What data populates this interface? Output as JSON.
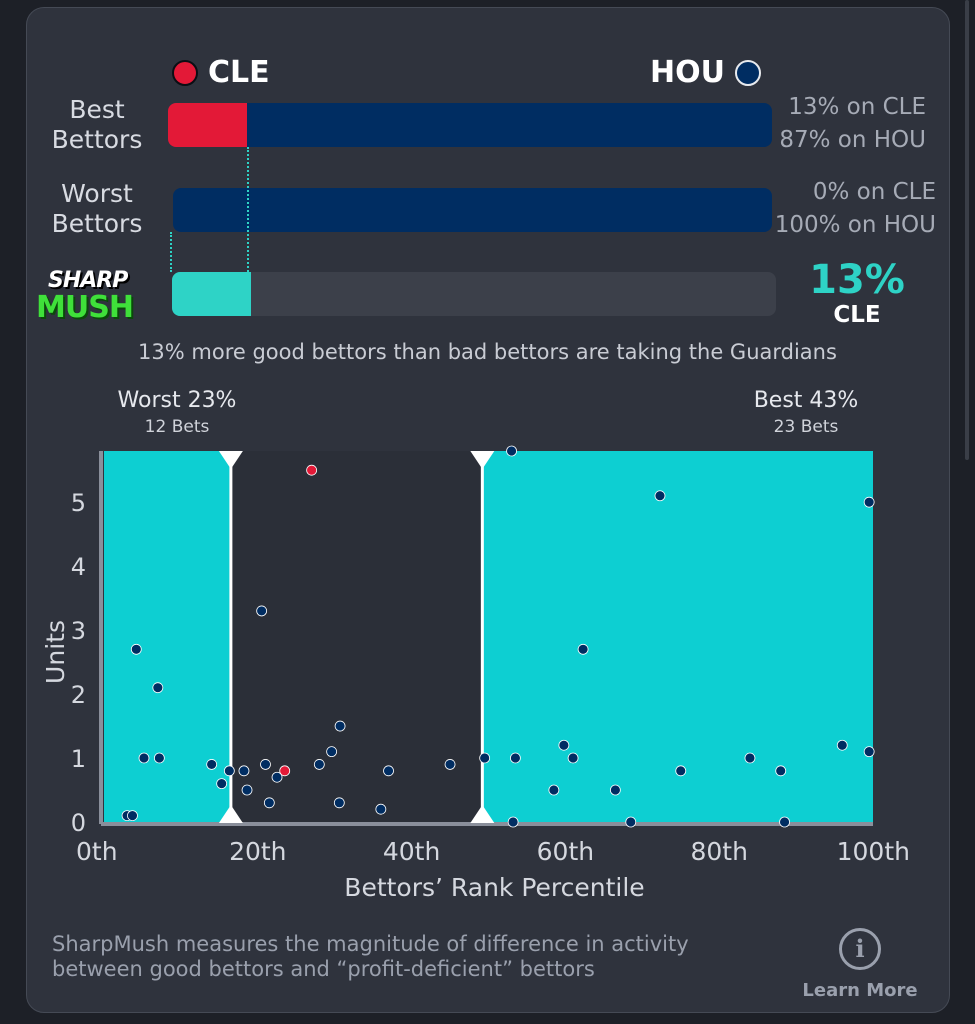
{
  "teams": {
    "left": {
      "abbr": "CLE",
      "color": "#e31937"
    },
    "right": {
      "abbr": "HOU",
      "color": "#002d62"
    }
  },
  "rows": [
    {
      "label_line1": "Best",
      "label_line2": "Bettors",
      "cle_pct": 13,
      "cle_text": "13% on CLE",
      "hou_text": "87% on HOU"
    },
    {
      "label_line1": "Worst",
      "label_line2": "Bettors",
      "cle_pct": 0,
      "cle_text": "0% on CLE",
      "hou_text": "100% on HOU"
    }
  ],
  "sharpmush": {
    "logo_line1": "SHARP",
    "logo_line2": "MUSH",
    "value": 13,
    "value_text": "13%",
    "team": "CLE",
    "summary": "13% more good bettors than bad bettors are taking the Guardians",
    "accent": "#2ed3c6"
  },
  "buckets": {
    "worst": {
      "title": "Worst 23%",
      "bets": "12 Bets",
      "upper_percentile": 16.5
    },
    "best": {
      "title": "Best 43%",
      "bets": "23 Bets",
      "lower_percentile": 49.2
    }
  },
  "chart_data": {
    "type": "scatter",
    "xlabel": "Bettors’ Rank Percentile",
    "ylabel": "Units",
    "xlim": [
      0,
      100
    ],
    "ylim": [
      0,
      5.8
    ],
    "x_ticks": [
      "0th",
      "20th",
      "40th",
      "60th",
      "80th",
      "100th"
    ],
    "x_tick_values": [
      0,
      20,
      40,
      60,
      80,
      100
    ],
    "y_ticks": [
      "0",
      "1",
      "2",
      "3",
      "4",
      "5"
    ],
    "y_tick_values": [
      0,
      1,
      2,
      3,
      4,
      5
    ],
    "shaded_regions_color": "#0dcfd2",
    "series": [
      {
        "team": "CLE",
        "color": "#e31937",
        "points": [
          [
            27,
            5.5
          ],
          [
            23.5,
            0.8
          ]
        ]
      },
      {
        "team": "HOU",
        "color": "#002d62",
        "points": [
          [
            3,
            0.1
          ],
          [
            3.7,
            0.1
          ],
          [
            4.2,
            2.7
          ],
          [
            5.2,
            1
          ],
          [
            7,
            2.1
          ],
          [
            7.2,
            1
          ],
          [
            14,
            0.9
          ],
          [
            15.3,
            0.6
          ],
          [
            16.3,
            0.8
          ],
          [
            18.2,
            0.8
          ],
          [
            18.6,
            0.5
          ],
          [
            20.5,
            3.3
          ],
          [
            21,
            0.9
          ],
          [
            21.5,
            0.3
          ],
          [
            22.5,
            0.7
          ],
          [
            28,
            0.9
          ],
          [
            29.6,
            1.1
          ],
          [
            30.6,
            0.3
          ],
          [
            30.7,
            1.5
          ],
          [
            36,
            0.2
          ],
          [
            37,
            0.8
          ],
          [
            45,
            0.9
          ],
          [
            49.5,
            1
          ],
          [
            53,
            5.8
          ],
          [
            53.2,
            0
          ],
          [
            53.5,
            1
          ],
          [
            58.5,
            0.5
          ],
          [
            59.8,
            1.2
          ],
          [
            61,
            1
          ],
          [
            62.3,
            2.7
          ],
          [
            66.5,
            0.5
          ],
          [
            68.5,
            0
          ],
          [
            72.3,
            5.1
          ],
          [
            75,
            0.8
          ],
          [
            84,
            1
          ],
          [
            88,
            0.8
          ],
          [
            88.5,
            0
          ],
          [
            96,
            1.2
          ],
          [
            99.5,
            5
          ],
          [
            99.5,
            1.1
          ]
        ]
      }
    ]
  },
  "footer": {
    "text_line1": "SharpMush measures the magnitude of difference in activity",
    "text_line2": "between good bettors and “profit-deficient” bettors",
    "learn_more": "Learn More",
    "info_glyph": "i"
  }
}
